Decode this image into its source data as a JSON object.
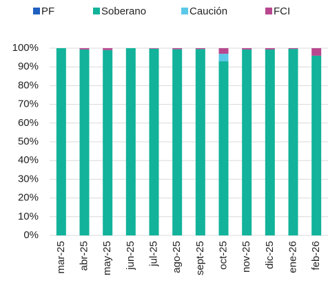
{
  "chart_data": {
    "type": "stacked_bar",
    "categories": [
      "mar-25",
      "abr-25",
      "may-25",
      "jun-25",
      "jul-25",
      "ago-25",
      "sept-25",
      "oct-25",
      "nov-25",
      "dic-25",
      "ene-26",
      "feb-26"
    ],
    "series": [
      {
        "name": "PF",
        "color": "#1f5fbf",
        "values": [
          0,
          0,
          0,
          0,
          0,
          0,
          0,
          0,
          0,
          0,
          0,
          0
        ]
      },
      {
        "name": "Soberano",
        "color": "#12b39a",
        "values": [
          100,
          99.3,
          99,
          100,
          99.7,
          99.4,
          99.5,
          93,
          99.3,
          99.3,
          99.6,
          96
        ]
      },
      {
        "name": "Caución",
        "color": "#5bc8e8",
        "values": [
          0,
          0,
          0,
          0,
          0,
          0,
          0,
          4,
          0,
          0,
          0,
          0
        ]
      },
      {
        "name": "FCI",
        "color": "#b8478f",
        "values": [
          0,
          0.7,
          1,
          0,
          0.3,
          0.6,
          0.5,
          3,
          0.7,
          0.7,
          0.4,
          4
        ]
      }
    ],
    "ylim": [
      0,
      100
    ],
    "yticks": [
      {
        "value": 0,
        "label": "0%"
      },
      {
        "value": 10,
        "label": "10%"
      },
      {
        "value": 20,
        "label": "20%"
      },
      {
        "value": 30,
        "label": "30%"
      },
      {
        "value": 40,
        "label": "40%"
      },
      {
        "value": 50,
        "label": "50%"
      },
      {
        "value": 60,
        "label": "60%"
      },
      {
        "value": 70,
        "label": "70%"
      },
      {
        "value": 80,
        "label": "80%"
      },
      {
        "value": 90,
        "label": "90%"
      },
      {
        "value": 100,
        "label": "100%"
      }
    ],
    "grid": true,
    "legend": "top"
  }
}
